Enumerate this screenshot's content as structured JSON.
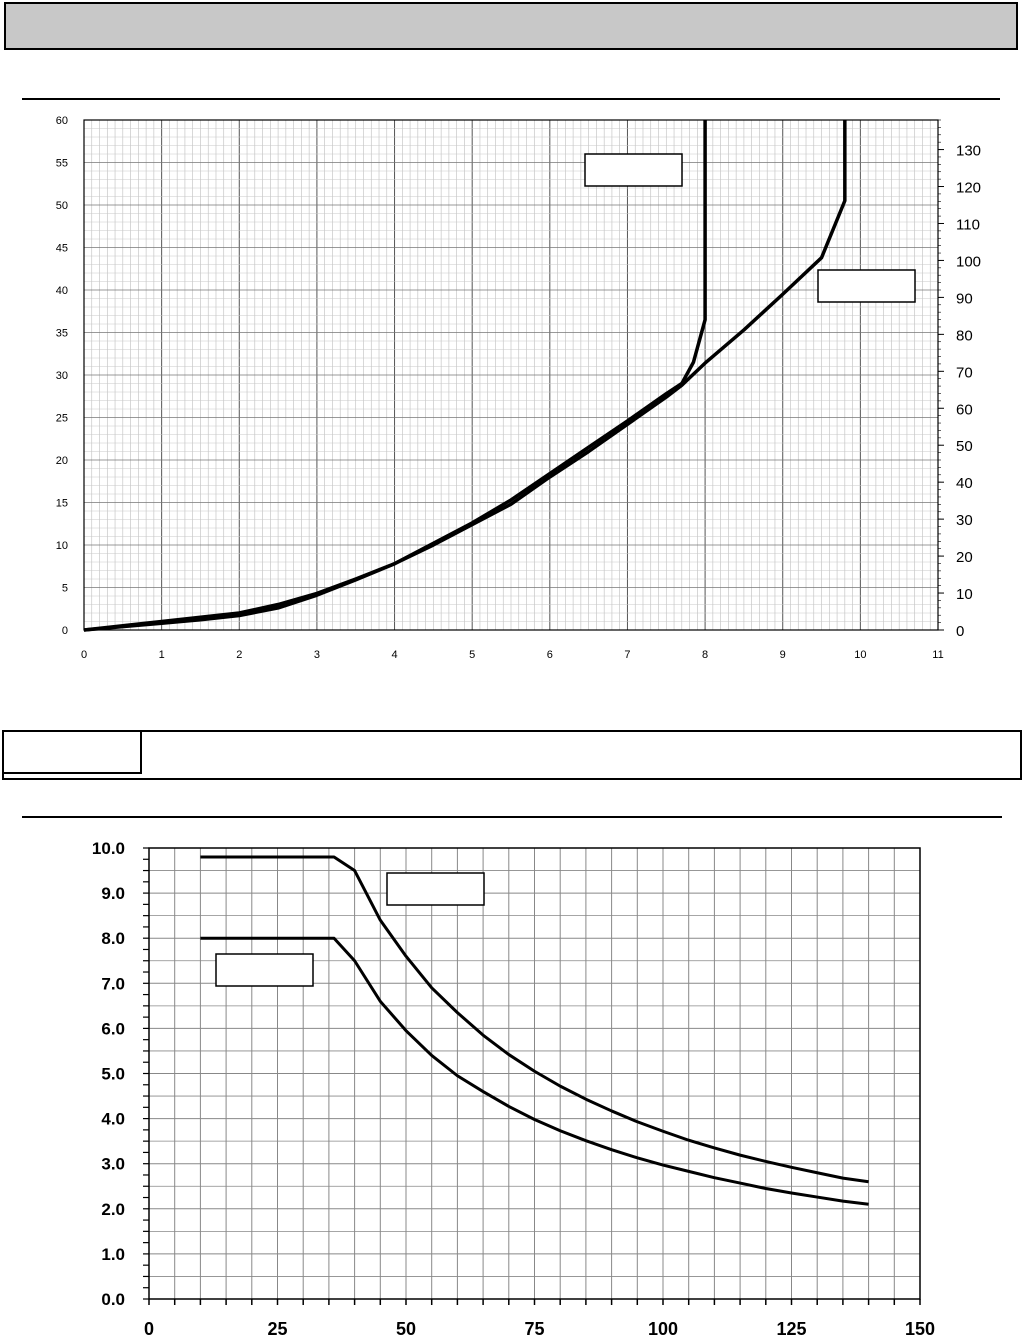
{
  "header": {},
  "chart_data": [
    {
      "type": "line",
      "xlim": [
        0,
        11
      ],
      "ylim": [
        0,
        60
      ],
      "y2lim": [
        0,
        138
      ],
      "x_ticks": [
        "0",
        "1",
        "2",
        "3",
        "4",
        "5",
        "6",
        "7",
        "8",
        "9",
        "10",
        "11"
      ],
      "y_ticks": [
        "0",
        "5",
        "10",
        "15",
        "20",
        "25",
        "30",
        "35",
        "40",
        "45",
        "50",
        "55",
        "60"
      ],
      "y2_ticks": [
        "0",
        "10",
        "20",
        "30",
        "40",
        "50",
        "60",
        "70",
        "80",
        "90",
        "100",
        "110",
        "120",
        "130"
      ],
      "grid": true,
      "series": [
        {
          "x": [
            0,
            0.5,
            1,
            1.5,
            2,
            2.5,
            3,
            3.5,
            4,
            4.5,
            5,
            5.5,
            6,
            6.5,
            7,
            7.5,
            7.7,
            7.85,
            8.0,
            8.0
          ],
          "y": [
            0,
            0.5,
            1.0,
            1.5,
            2.0,
            3.0,
            4.3,
            6.0,
            7.8,
            10.2,
            12.6,
            15.3,
            18.4,
            21.5,
            24.6,
            27.8,
            29.0,
            31.5,
            36.5,
            60
          ]
        },
        {
          "x": [
            0,
            0.5,
            1,
            1.5,
            2,
            2.5,
            3,
            3.5,
            4,
            4.5,
            5,
            5.5,
            6,
            6.5,
            7,
            7.5,
            7.7,
            8.0,
            8.5,
            9.0,
            9.5,
            9.8,
            9.8
          ],
          "y": [
            0,
            0.4,
            0.8,
            1.2,
            1.7,
            2.6,
            4.1,
            5.9,
            7.8,
            10.0,
            12.4,
            14.8,
            18.0,
            21.0,
            24.2,
            27.4,
            28.8,
            31.4,
            35.3,
            39.5,
            43.8,
            50.5,
            60
          ]
        }
      ]
    },
    {
      "type": "line",
      "xlim": [
        0,
        150
      ],
      "ylim": [
        0,
        10
      ],
      "x_ticks": [
        "0",
        "25",
        "50",
        "75",
        "100",
        "125",
        "150"
      ],
      "y_ticks": [
        "0.0",
        "1.0",
        "2.0",
        "3.0",
        "4.0",
        "5.0",
        "6.0",
        "7.0",
        "8.0",
        "9.0",
        "10.0"
      ],
      "grid": true,
      "series": [
        {
          "x": [
            10,
            36,
            40,
            45,
            50,
            55,
            60,
            65,
            70,
            75,
            80,
            85,
            90,
            95,
            100,
            105,
            110,
            115,
            120,
            125,
            130,
            135,
            140
          ],
          "y": [
            9.8,
            9.8,
            9.5,
            8.4,
            7.6,
            6.9,
            6.35,
            5.85,
            5.42,
            5.05,
            4.72,
            4.43,
            4.17,
            3.93,
            3.72,
            3.52,
            3.35,
            3.19,
            3.05,
            2.92,
            2.8,
            2.68,
            2.6
          ]
        },
        {
          "x": [
            10,
            36,
            40,
            45,
            50,
            55,
            60,
            65,
            70,
            75,
            80,
            85,
            90,
            95,
            100,
            105,
            110,
            115,
            120,
            125,
            130,
            135,
            140
          ],
          "y": [
            8.0,
            8.0,
            7.5,
            6.6,
            5.95,
            5.4,
            4.95,
            4.6,
            4.27,
            3.98,
            3.73,
            3.51,
            3.31,
            3.13,
            2.97,
            2.83,
            2.69,
            2.57,
            2.45,
            2.35,
            2.26,
            2.17,
            2.1
          ]
        }
      ]
    }
  ]
}
